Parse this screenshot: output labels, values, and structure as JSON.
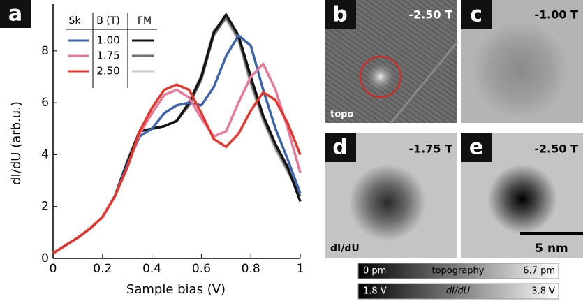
{
  "chart_data": {
    "type": "line",
    "xlabel": "Sample bias (V)",
    "ylabel": "dI/dU (arb.u.)",
    "panel": "a",
    "x": [
      0,
      0.05,
      0.1,
      0.15,
      0.2,
      0.25,
      0.3,
      0.35,
      0.4,
      0.45,
      0.5,
      0.55,
      0.6,
      0.65,
      0.7,
      0.75,
      0.8,
      0.85,
      0.9,
      0.95,
      1
    ],
    "xlim": [
      0,
      1
    ],
    "xticks": [
      0,
      0.2,
      0.4,
      0.6,
      0.8,
      1
    ],
    "ylim": [
      0,
      9.8
    ],
    "yticks": [
      0,
      2,
      4,
      6,
      8
    ],
    "legend": {
      "headers": [
        "Sk",
        "B (T)",
        "FM"
      ],
      "rows": [
        "1.00",
        "1.75",
        "2.50"
      ]
    },
    "series": [
      {
        "color": "#3b64ad",
        "values": [
          0.2,
          0.5,
          0.8,
          1.15,
          1.6,
          2.4,
          3.6,
          4.7,
          5.0,
          5.6,
          5.9,
          6.0,
          5.9,
          6.6,
          7.8,
          8.6,
          8.2,
          6.5,
          5.0,
          3.8,
          2.5
        ]
      },
      {
        "color": "#e8799b",
        "values": [
          0.2,
          0.5,
          0.8,
          1.15,
          1.6,
          2.4,
          3.5,
          4.8,
          5.6,
          6.3,
          6.5,
          6.2,
          5.4,
          4.7,
          4.9,
          6.0,
          7.0,
          7.5,
          6.5,
          5.0,
          3.3
        ]
      },
      {
        "color": "#e4362b",
        "values": [
          0.2,
          0.5,
          0.8,
          1.15,
          1.6,
          2.4,
          3.5,
          4.9,
          5.8,
          6.5,
          6.7,
          6.5,
          5.6,
          4.6,
          4.3,
          4.8,
          5.7,
          6.4,
          6.1,
          5.2,
          4.0
        ]
      },
      {
        "color": "#111111",
        "values": [
          0.2,
          0.5,
          0.8,
          1.15,
          1.6,
          2.4,
          3.7,
          4.9,
          5.0,
          5.1,
          5.3,
          6.0,
          7.0,
          8.7,
          9.4,
          8.6,
          7.0,
          5.5,
          4.4,
          3.5,
          2.2
        ]
      },
      {
        "color": "#6e6e6e",
        "values": [
          0.2,
          0.5,
          0.8,
          1.15,
          1.6,
          2.4,
          3.7,
          4.9,
          5.0,
          5.1,
          5.3,
          5.9,
          6.9,
          8.6,
          9.3,
          8.5,
          6.8,
          5.4,
          4.3,
          3.4,
          2.4
        ]
      },
      {
        "color": "#c8c8c8",
        "values": [
          0.2,
          0.5,
          0.8,
          1.15,
          1.6,
          2.4,
          3.8,
          4.9,
          5.0,
          5.1,
          5.3,
          6.0,
          7.1,
          8.8,
          9.2,
          8.4,
          6.7,
          5.3,
          4.2,
          3.3,
          2.5
        ]
      }
    ]
  },
  "panels": [
    {
      "letter": "b",
      "field": "-2.50 T",
      "note": "topo"
    },
    {
      "letter": "c",
      "field": "-1.00 T"
    },
    {
      "letter": "d",
      "field": "-1.75 T",
      "note": "dI/dU"
    },
    {
      "letter": "e",
      "field": "-2.50 T",
      "scale": "5 nm"
    }
  ],
  "colorbars": [
    {
      "min": "0 pm",
      "label": "topography",
      "max": "6.7 pm"
    },
    {
      "min": "1.8 V",
      "label": "dI/dU",
      "max": "3.8 V"
    }
  ]
}
